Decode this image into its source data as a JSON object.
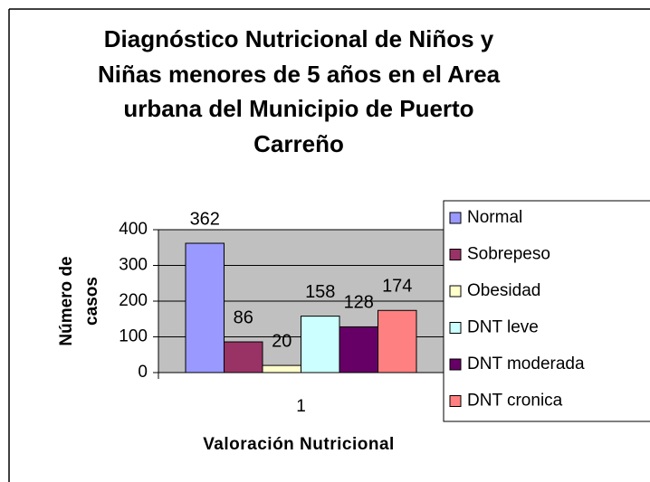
{
  "chart_data": {
    "type": "bar",
    "title": "Diagnóstico Nutricional de Niños y Niñas menores de 5 años en el Area urbana del Municipio de Puerto Carreño",
    "x_label": "Valoración Nutricional",
    "y_label": "Número de casos",
    "categories": [
      "1"
    ],
    "series": [
      {
        "name": "Normal",
        "color": "#9999FF",
        "values": [
          362
        ]
      },
      {
        "name": "Sobrepeso",
        "color": "#993366",
        "values": [
          86
        ]
      },
      {
        "name": "Obesidad",
        "color": "#FFFFCC",
        "values": [
          20
        ]
      },
      {
        "name": "DNT leve",
        "color": "#CCFFFF",
        "values": [
          158
        ]
      },
      {
        "name": "DNT moderada",
        "color": "#660066",
        "values": [
          128
        ]
      },
      {
        "name": "DNT cronica",
        "color": "#FF8080",
        "values": [
          174
        ]
      }
    ],
    "ylim": [
      0,
      400
    ],
    "yticks": [
      0,
      100,
      200,
      300,
      400
    ],
    "grid": true,
    "legend": "right"
  }
}
